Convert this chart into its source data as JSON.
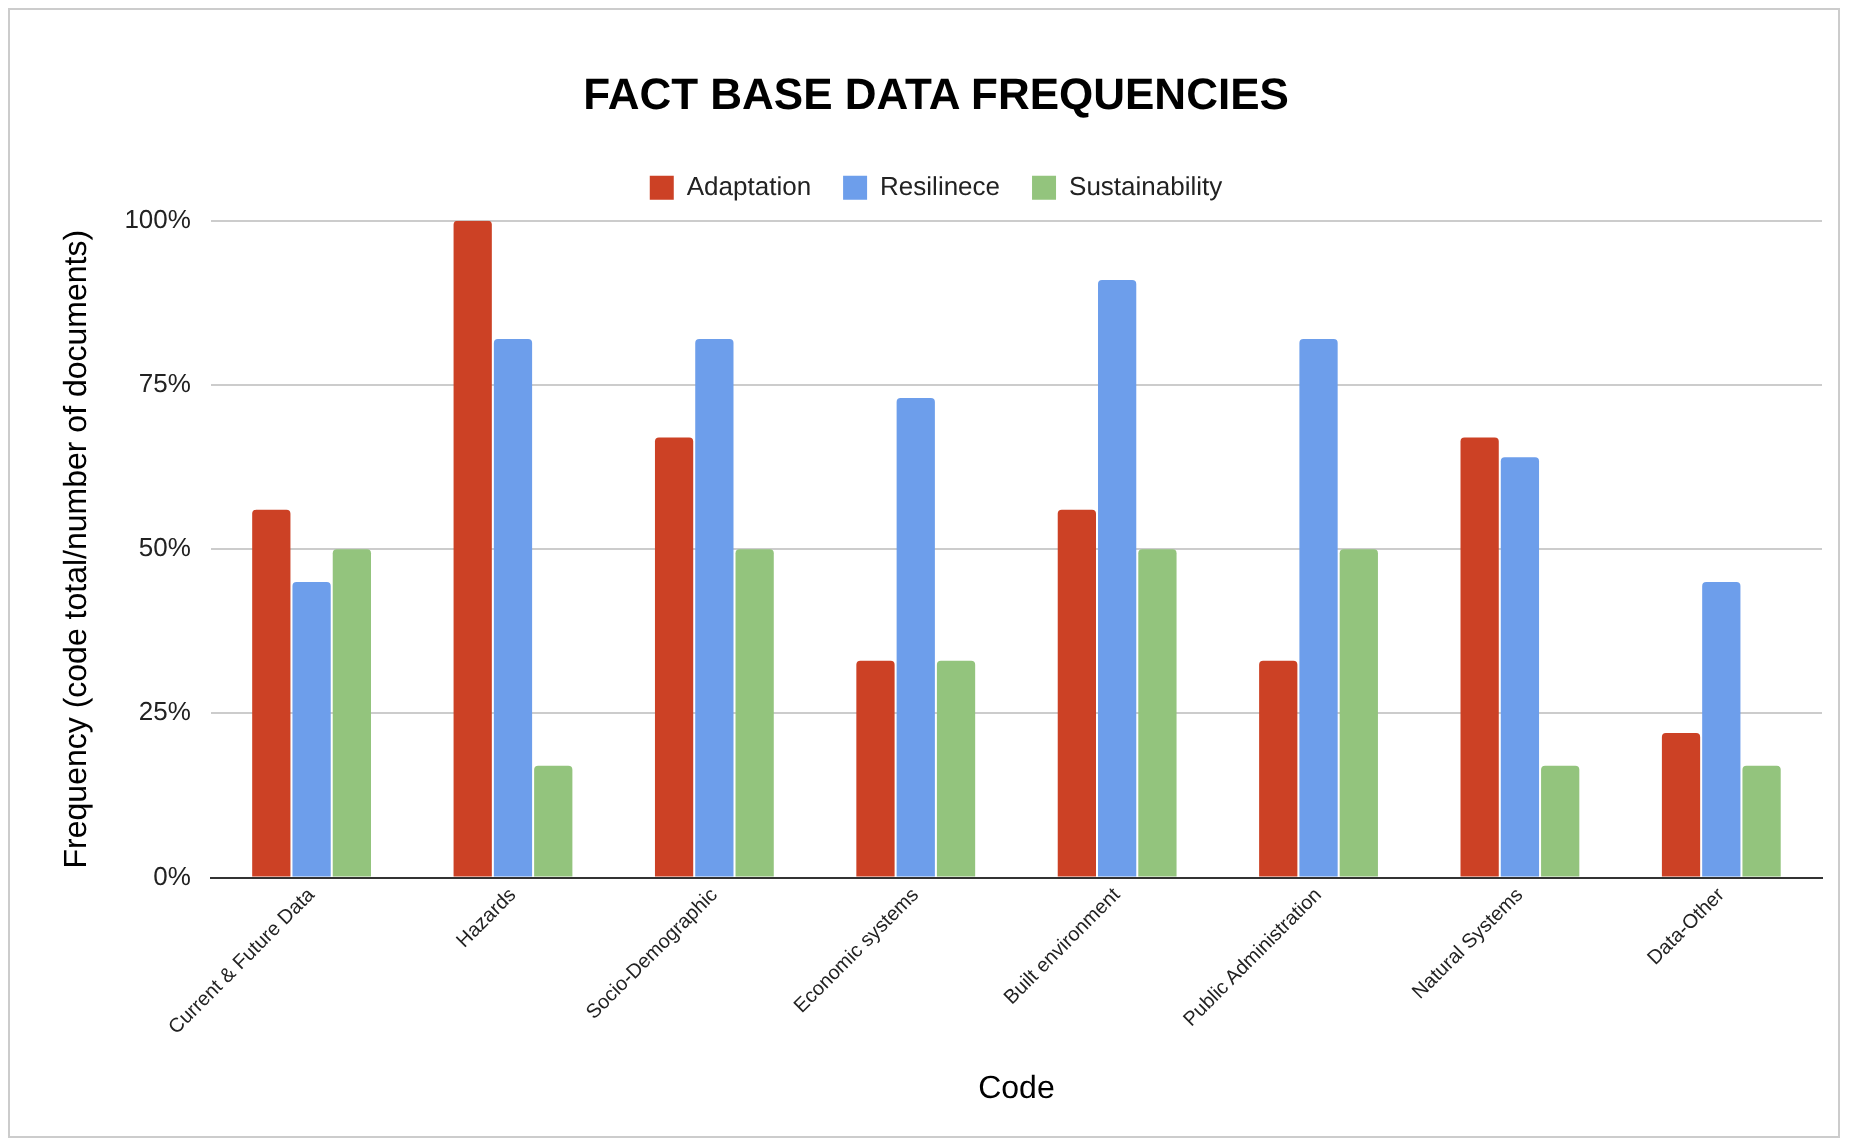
{
  "chart_data": {
    "type": "bar",
    "title": "FACT BASE DATA FREQUENCIES",
    "xlabel": "Code",
    "ylabel": "Frequency (code total/number of documents)",
    "categories": [
      "Current & Future Data",
      "Hazards",
      "Socio-Demographic",
      "Economic systems",
      "Built environment",
      "Public Administration",
      "Natural Systems",
      "Data-Other"
    ],
    "series": [
      {
        "name": "Adaptation",
        "color": "#cc4125",
        "values": [
          56,
          100,
          67,
          33,
          56,
          33,
          67,
          22
        ]
      },
      {
        "name": "Resilinece",
        "color": "#6d9eeb",
        "values": [
          45,
          82,
          82,
          73,
          91,
          82,
          64,
          45
        ]
      },
      {
        "name": "Sustainability",
        "color": "#93c47d",
        "values": [
          50,
          17,
          50,
          33,
          50,
          50,
          17,
          17
        ]
      }
    ],
    "ylim": [
      0,
      100
    ],
    "yticks": [
      {
        "value": 0,
        "label": "0%"
      },
      {
        "value": 25,
        "label": "25%"
      },
      {
        "value": 50,
        "label": "50%"
      },
      {
        "value": 75,
        "label": "75%"
      },
      {
        "value": 100,
        "label": "100%"
      }
    ],
    "grid": "y",
    "legend": "top"
  }
}
